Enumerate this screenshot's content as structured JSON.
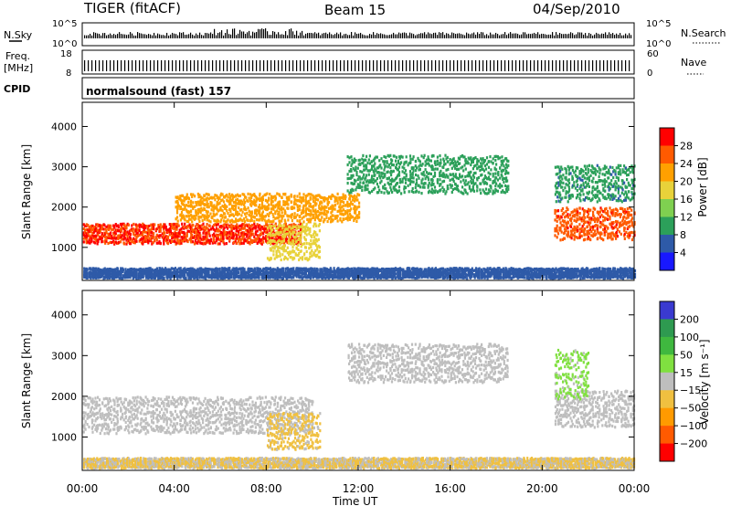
{
  "header": {
    "station": "TIGER (fitACF)",
    "beam": "Beam 15",
    "date": "04/Sep/2010"
  },
  "strips": {
    "nsky_label": "N.Sky",
    "nsky_ticks": [
      "10^5",
      "10^0"
    ],
    "nsearch_label": "N.Search",
    "nsearch_ticks": [
      "10^5",
      "10^0"
    ],
    "freq_label_line1": "Freq.",
    "freq_label_line2": "[MHz]",
    "freq_ticks": [
      "18",
      "8"
    ],
    "nave_label": "Nave",
    "nave_ticks": [
      "60",
      "0"
    ],
    "cpid_label": "CPID",
    "cpid_value": "normalsound (fast) 157"
  },
  "panels": {
    "y_label": "Slant Range [km]",
    "x_label": "Time UT",
    "y_ticks": [
      "4000",
      "3000",
      "2000",
      "1000"
    ],
    "x_ticks": [
      "00:00",
      "04:00",
      "08:00",
      "12:00",
      "16:00",
      "20:00",
      "00:00"
    ]
  },
  "power_scale": {
    "label": "Power [dB]",
    "ticks": [
      "28",
      "24",
      "20",
      "16",
      "12",
      "8",
      "4"
    ],
    "colors": [
      "#ff0000",
      "#ff5a00",
      "#ffa000",
      "#e8d23a",
      "#7fd050",
      "#2ca05a",
      "#2e5aa8",
      "#1818ff"
    ]
  },
  "velocity_scale": {
    "label": "Velocity [m s⁻¹]",
    "ticks": [
      "200",
      "100",
      "50",
      "15",
      "−15",
      "−50",
      "−100",
      "−200"
    ],
    "colors": [
      "#3a3ad0",
      "#2e9a50",
      "#3fb83f",
      "#80e040",
      "#bebebe",
      "#f0c040",
      "#ff9a00",
      "#ff5a00",
      "#ff0000"
    ]
  },
  "chart_data": {
    "type": "heatmap",
    "title": "TIGER (fitACF)",
    "x_range": [
      "00:00",
      "24:00"
    ],
    "y_range_km": [
      180,
      4600
    ],
    "plots": [
      {
        "name": "Power",
        "unit": "dB",
        "color_range": [
          0,
          32
        ],
        "bands": [
          {
            "t_start": 0.0,
            "t_end": 9.5,
            "r_lo": 1050,
            "r_hi": 1550,
            "value": 28
          },
          {
            "t_start": 4.0,
            "t_end": 12.0,
            "r_lo": 1600,
            "r_hi": 2300,
            "value": 22
          },
          {
            "t_start": 8.0,
            "t_end": 10.3,
            "r_lo": 650,
            "r_hi": 1550,
            "value": 18
          },
          {
            "t_start": 11.5,
            "t_end": 18.5,
            "r_lo": 2300,
            "r_hi": 3250,
            "value": 10
          },
          {
            "t_start": 20.5,
            "t_end": 24.0,
            "r_lo": 1150,
            "r_hi": 1950,
            "value": 27
          },
          {
            "t_start": 20.5,
            "t_end": 24.0,
            "r_lo": 2100,
            "r_hi": 3000,
            "value": 9
          },
          {
            "t_start": 0.0,
            "t_end": 24.0,
            "r_lo": 200,
            "r_hi": 450,
            "value": 6
          }
        ]
      },
      {
        "name": "Velocity",
        "unit": "m/s",
        "color_range": [
          -250,
          250
        ],
        "bands": [
          {
            "t_start": 0.0,
            "t_end": 10.0,
            "r_lo": 1050,
            "r_hi": 1950,
            "value": 0
          },
          {
            "t_start": 8.0,
            "t_end": 10.3,
            "r_lo": 650,
            "r_hi": 1550,
            "value": -40
          },
          {
            "t_start": 11.5,
            "t_end": 18.5,
            "r_lo": 2300,
            "r_hi": 3250,
            "value": 0
          },
          {
            "t_start": 20.5,
            "t_end": 24.0,
            "r_lo": 1200,
            "r_hi": 2100,
            "value": 5
          },
          {
            "t_start": 20.5,
            "t_end": 22.0,
            "r_lo": 1900,
            "r_hi": 3100,
            "value": 40
          },
          {
            "t_start": 0.0,
            "t_end": 24.0,
            "r_lo": 200,
            "r_hi": 450,
            "value": -30
          }
        ]
      }
    ]
  }
}
